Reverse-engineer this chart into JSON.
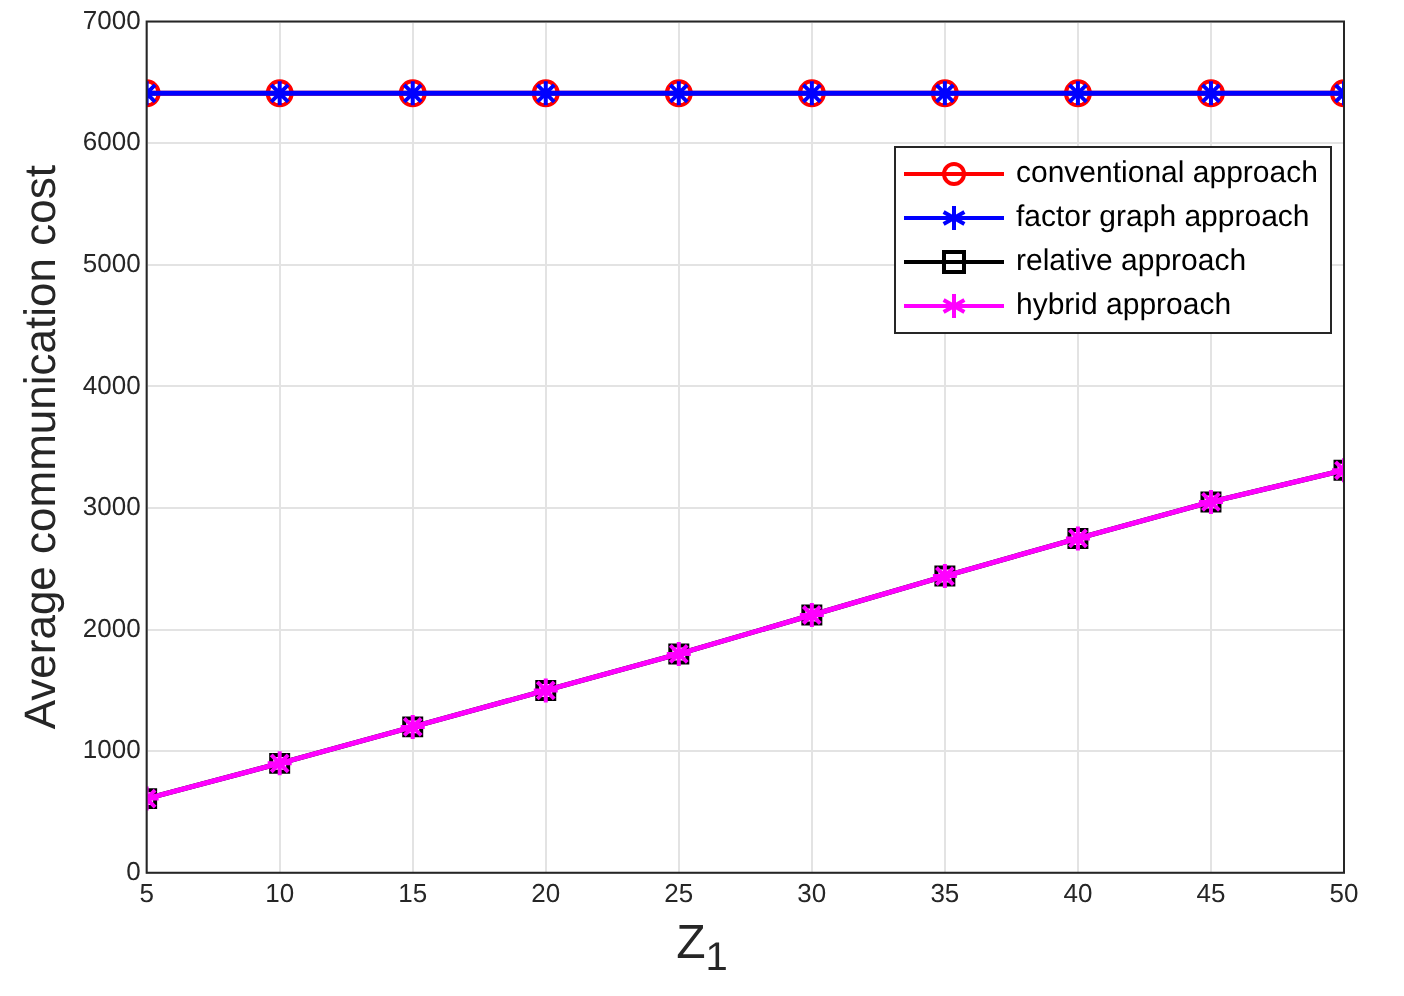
{
  "chart_data": {
    "type": "line",
    "xlabel": "Z$_{1}$",
    "ylabel": "Average communication cost",
    "x": [
      5,
      10,
      15,
      20,
      25,
      30,
      35,
      40,
      45,
      50
    ],
    "series": [
      {
        "name": "conventional approach",
        "color": "#ff0000",
        "marker": "circle",
        "values": [
          6410,
          6410,
          6410,
          6410,
          6410,
          6410,
          6410,
          6410,
          6410,
          6410
        ]
      },
      {
        "name": "factor graph approach",
        "color": "#0000ff",
        "marker": "cross",
        "values": [
          6410,
          6410,
          6410,
          6410,
          6410,
          6410,
          6410,
          6410,
          6410,
          6410
        ]
      },
      {
        "name": "relative approach",
        "color": "#000000",
        "marker": "square",
        "values": [
          610,
          900,
          1200,
          1500,
          1800,
          2120,
          2440,
          2750,
          3050,
          3310
        ]
      },
      {
        "name": "hybrid approach",
        "color": "#ff00ff",
        "marker": "cross",
        "values": [
          610,
          900,
          1200,
          1500,
          1800,
          2120,
          2440,
          2750,
          3050,
          3310
        ]
      }
    ],
    "xlim": [
      5,
      50
    ],
    "xticks": [
      5,
      10,
      15,
      20,
      25,
      30,
      35,
      40,
      45,
      50
    ],
    "ylim": [
      0,
      7000
    ],
    "yticks": [
      0,
      1000,
      2000,
      3000,
      4000,
      5000,
      6000,
      7000
    ],
    "grid": true,
    "legend": "top right",
    "line_style": "solid"
  }
}
